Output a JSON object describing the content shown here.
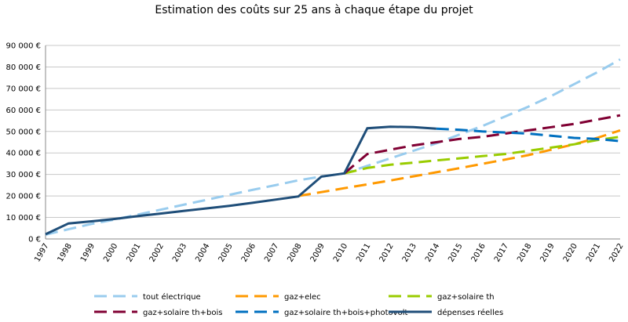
{
  "chart_data": {
    "type": "line",
    "title": "Estimation des coûts sur 25 ans à chaque étape du projet",
    "categories": [
      "1997",
      "1998",
      "1999",
      "2000",
      "2001",
      "2002",
      "2003",
      "2004",
      "2005",
      "2006",
      "2007",
      "2008",
      "2009",
      "2010",
      "2011",
      "2012",
      "2013",
      "2014",
      "2015",
      "2016",
      "2017",
      "2018",
      "2019",
      "2020",
      "2021",
      "2022"
    ],
    "ylim": [
      0,
      90000
    ],
    "yticks": [
      {
        "value": 0,
        "label": "0 €"
      },
      {
        "value": 10000,
        "label": "10 000 €"
      },
      {
        "value": 20000,
        "label": "20 000 €"
      },
      {
        "value": 30000,
        "label": "30 000 €"
      },
      {
        "value": 40000,
        "label": "40 000 €"
      },
      {
        "value": 50000,
        "label": "50 000 €"
      },
      {
        "value": 60000,
        "label": "60 000 €"
      },
      {
        "value": 70000,
        "label": "70 000 €"
      },
      {
        "value": 80000,
        "label": "80 000 €"
      },
      {
        "value": 90000,
        "label": "90 000 €"
      }
    ],
    "grid": true,
    "legend": "bottom",
    "series": [
      {
        "name": "tout électrique",
        "color": "#99ccee",
        "dashed": true,
        "values": [
          2000,
          4500,
          7000,
          9000,
          11300,
          13600,
          15900,
          18200,
          20500,
          22800,
          25000,
          27300,
          29000,
          30500,
          34000,
          37500,
          41000,
          44500,
          48500,
          52500,
          57000,
          61500,
          66500,
          72000,
          77500,
          83500
        ]
      },
      {
        "name": "gaz+elec",
        "color": "#ff9900",
        "dashed": true,
        "values": [
          null,
          null,
          null,
          null,
          null,
          null,
          null,
          null,
          null,
          null,
          null,
          20000,
          21800,
          23600,
          25400,
          27200,
          29100,
          31000,
          32900,
          34900,
          36900,
          39000,
          41500,
          44000,
          47000,
          50500
        ]
      },
      {
        "name": "gaz+solaire th",
        "color": "#99cc00",
        "dashed": true,
        "values": [
          null,
          null,
          null,
          null,
          null,
          null,
          null,
          null,
          null,
          null,
          null,
          null,
          null,
          30500,
          33000,
          34500,
          35500,
          36500,
          37500,
          38500,
          39500,
          41000,
          42500,
          44000,
          46000,
          47500
        ]
      },
      {
        "name": "gaz+solaire th+bois",
        "color": "#800033",
        "dashed": true,
        "values": [
          null,
          null,
          null,
          null,
          null,
          null,
          null,
          null,
          null,
          null,
          null,
          null,
          null,
          30500,
          39500,
          41500,
          43500,
          45000,
          46500,
          47500,
          49000,
          50500,
          52000,
          53500,
          55500,
          57500
        ]
      },
      {
        "name": "gaz+solaire th+bois+photovolt",
        "color": "#0070c0",
        "dashed": true,
        "values": [
          null,
          null,
          null,
          null,
          null,
          null,
          null,
          null,
          null,
          null,
          null,
          null,
          null,
          null,
          null,
          null,
          null,
          51300,
          50800,
          50000,
          49500,
          49000,
          48000,
          47000,
          46500,
          45500
        ]
      },
      {
        "name": "dépenses réelles",
        "color": "#1f4e79",
        "dashed": false,
        "values": [
          2200,
          7200,
          8200,
          9300,
          10600,
          11800,
          13000,
          14200,
          15400,
          16800,
          18300,
          19800,
          29000,
          30500,
          51500,
          52200,
          52000,
          51300,
          null,
          null,
          null,
          null,
          null,
          null,
          null,
          null
        ]
      }
    ]
  }
}
